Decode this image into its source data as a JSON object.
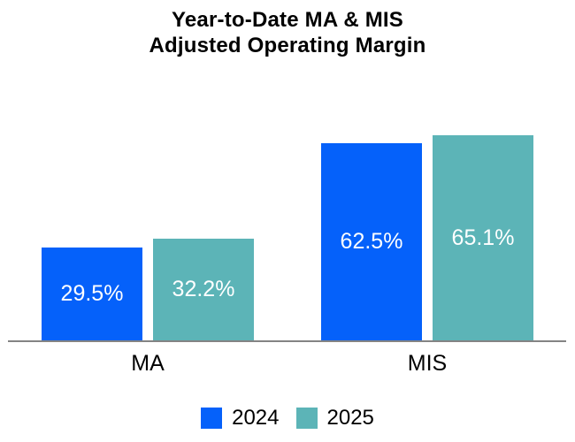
{
  "title": {
    "line1": "Year-to-Date MA & MIS",
    "line2": "Adjusted Operating Margin"
  },
  "chart_data": {
    "type": "bar",
    "title": "Year-to-Date MA & MIS Adjusted Operating Margin",
    "categories": [
      "MA",
      "MIS"
    ],
    "series": [
      {
        "name": "2024",
        "color": "#0561FA",
        "values": [
          29.5,
          62.5
        ],
        "labels": [
          "29.5%",
          "62.5%"
        ]
      },
      {
        "name": "2025",
        "color": "#5CB4B7",
        "values": [
          32.2,
          65.1
        ],
        "labels": [
          "32.2%",
          "65.1%"
        ]
      }
    ],
    "xlabel": "",
    "ylabel": "",
    "ylim": [
      0,
      100
    ],
    "grid": false,
    "y_axis_visible": false,
    "legend_position": "bottom",
    "value_label_position": "center",
    "value_label_color": "#FFFFFF",
    "axis_line_color": "#848484"
  },
  "legend": {
    "items": [
      {
        "label": "2024",
        "color": "#0561FA"
      },
      {
        "label": "2025",
        "color": "#5CB4B7"
      }
    ]
  }
}
